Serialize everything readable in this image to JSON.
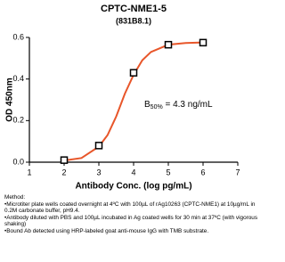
{
  "chart_data": {
    "type": "line",
    "title": "CPTC-NME1-5",
    "subtitle": "(831B8.1)",
    "x_label": "Antibody Conc. (log pg/mL)",
    "y_label": "OD 450nm",
    "xlim": [
      1,
      7
    ],
    "xticks": [
      1,
      2,
      3,
      4,
      5,
      6,
      7
    ],
    "ylim": [
      0,
      0.6
    ],
    "yticks": [
      {
        "value": 0,
        "label": "0.0"
      },
      0.2,
      0.4,
      0.6
    ],
    "annotation": {
      "main": "B",
      "sub": "50%",
      "rest": " = 4.3 ng/mL"
    },
    "series": [
      {
        "style": "line",
        "color": "#e8562a",
        "x": [
          2,
          2.5,
          3,
          3.25,
          3.5,
          3.75,
          4,
          4.25,
          4.5,
          5,
          5.5,
          6
        ],
        "values": [
          0.008,
          0.02,
          0.075,
          0.13,
          0.22,
          0.33,
          0.42,
          0.49,
          0.53,
          0.565,
          0.573,
          0.576
        ]
      },
      {
        "style": "marker",
        "color": "#000000",
        "x": [
          2,
          3,
          4,
          5,
          6
        ],
        "values": [
          0.01,
          0.08,
          0.43,
          0.565,
          0.575
        ]
      }
    ]
  },
  "method": {
    "heading": "Method:",
    "items": [
      "Microtiter plate wells coated overnight at 4ºC  with 100µL of rAg10263 (CPTC-NME1) at 10µg/mL in 0.2M carbonate buffer, pH9.4.",
      "Antibody diluted with PBS and 100µL incubated in Ag coated wells for 30 min at 37ºC (with vigorous shaking)",
      "Bound Ab detected using HRP-labeled goat anti-mouse IgG with TMB substrate."
    ]
  }
}
